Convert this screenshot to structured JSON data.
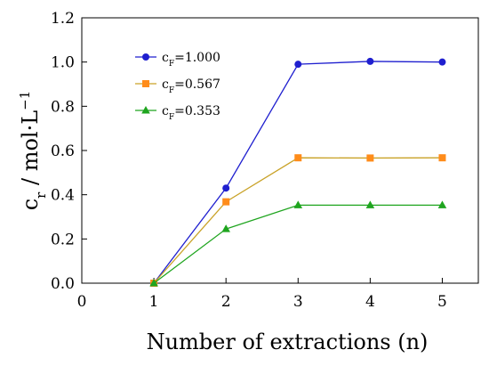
{
  "chart_data": {
    "type": "line",
    "title": "",
    "xlabel": "Number of extractions (n)",
    "ylabel": {
      "main": "c",
      "sub": "r",
      "unit": " / mol·L",
      "sup": "−1"
    },
    "xlim": [
      0,
      5.5
    ],
    "ylim": [
      0,
      1.2
    ],
    "x_ticks": [
      "0",
      "1",
      "2",
      "3",
      "4",
      "5"
    ],
    "y_ticks": [
      "0.0",
      "0.2",
      "0.4",
      "0.6",
      "0.8",
      "1.0",
      "1.2"
    ],
    "x_tick_values": [
      0,
      1,
      2,
      3,
      4,
      5
    ],
    "y_tick_values": [
      0,
      0.2,
      0.4,
      0.6,
      0.8,
      1.0,
      1.2
    ],
    "grid": false,
    "legend_position": "top-left",
    "series": [
      {
        "name": "c_F=1.000",
        "label_main": "c",
        "label_sub": "F",
        "label_value": "=1.000",
        "color": "#1f1fcf",
        "marker": "circle",
        "x": [
          1,
          2,
          3,
          4,
          5
        ],
        "y": [
          0.0,
          0.43,
          0.99,
          1.003,
          1.0
        ]
      },
      {
        "name": "c_F=0.567",
        "label_main": "c",
        "label_sub": "F",
        "label_value": "=0.567",
        "color": "#ff8c1a",
        "line_color": "#c9a227",
        "marker": "square",
        "x": [
          1,
          2,
          3,
          4,
          5
        ],
        "y": [
          0.0,
          0.368,
          0.567,
          0.566,
          0.567
        ]
      },
      {
        "name": "c_F=0.353",
        "label_main": "c",
        "label_sub": "F",
        "label_value": "=0.353",
        "color": "#1fa51f",
        "marker": "triangle",
        "x": [
          1,
          2,
          3,
          4,
          5
        ],
        "y": [
          0.0,
          0.245,
          0.353,
          0.353,
          0.353
        ]
      }
    ]
  }
}
